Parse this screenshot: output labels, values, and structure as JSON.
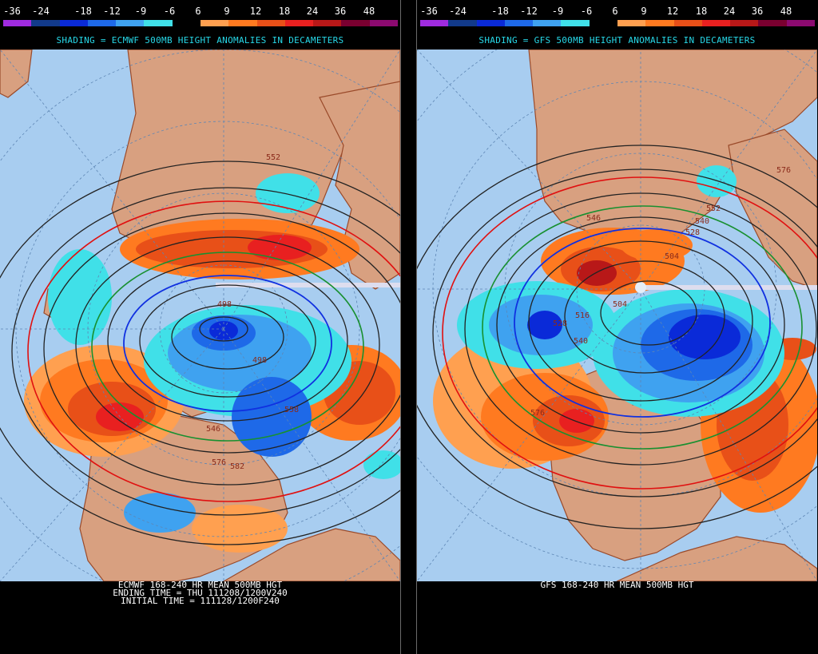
{
  "scale": {
    "labels": [
      "-36",
      "-24",
      "-18",
      "-12",
      "-9",
      "-6",
      "6",
      "9",
      "12",
      "18",
      "24",
      "36",
      "48"
    ],
    "colors": [
      "#a02be0",
      "#123a8a",
      "#0a2ad8",
      "#1e69e8",
      "#3fa2f0",
      "#40e0e8",
      "#000000",
      "#ffa050",
      "#ff7a20",
      "#e85018",
      "#e82020",
      "#b81818",
      "#7a0030",
      "#8c0a70"
    ]
  },
  "colors": {
    "ocean": "#a8cdf0",
    "land": "#d8a080",
    "title": "#27d8e8"
  },
  "left_panel": {
    "title": "SHADING = ECMWF 500MB HEIGHT ANOMALIES IN DECAMETERS",
    "caption": [
      "ECMWF 168-240 HR MEAN 500MB HGT",
      "ENDING TIME = THU 111208/1200V240",
      "INITIAL TIME = 111128/1200F240"
    ],
    "contour_labels": [
      "552",
      "498",
      "498",
      "558",
      "546",
      "582",
      "576"
    ]
  },
  "right_panel": {
    "title": "SHADING = GFS 500MB HEIGHT ANOMALIES IN DECAMETERS",
    "caption": [
      "GFS 168-240 HR MEAN 500MB HGT"
    ],
    "contour_labels": [
      "576",
      "552",
      "540",
      "528",
      "516",
      "504",
      "504",
      "528",
      "540",
      "576",
      "546"
    ]
  }
}
